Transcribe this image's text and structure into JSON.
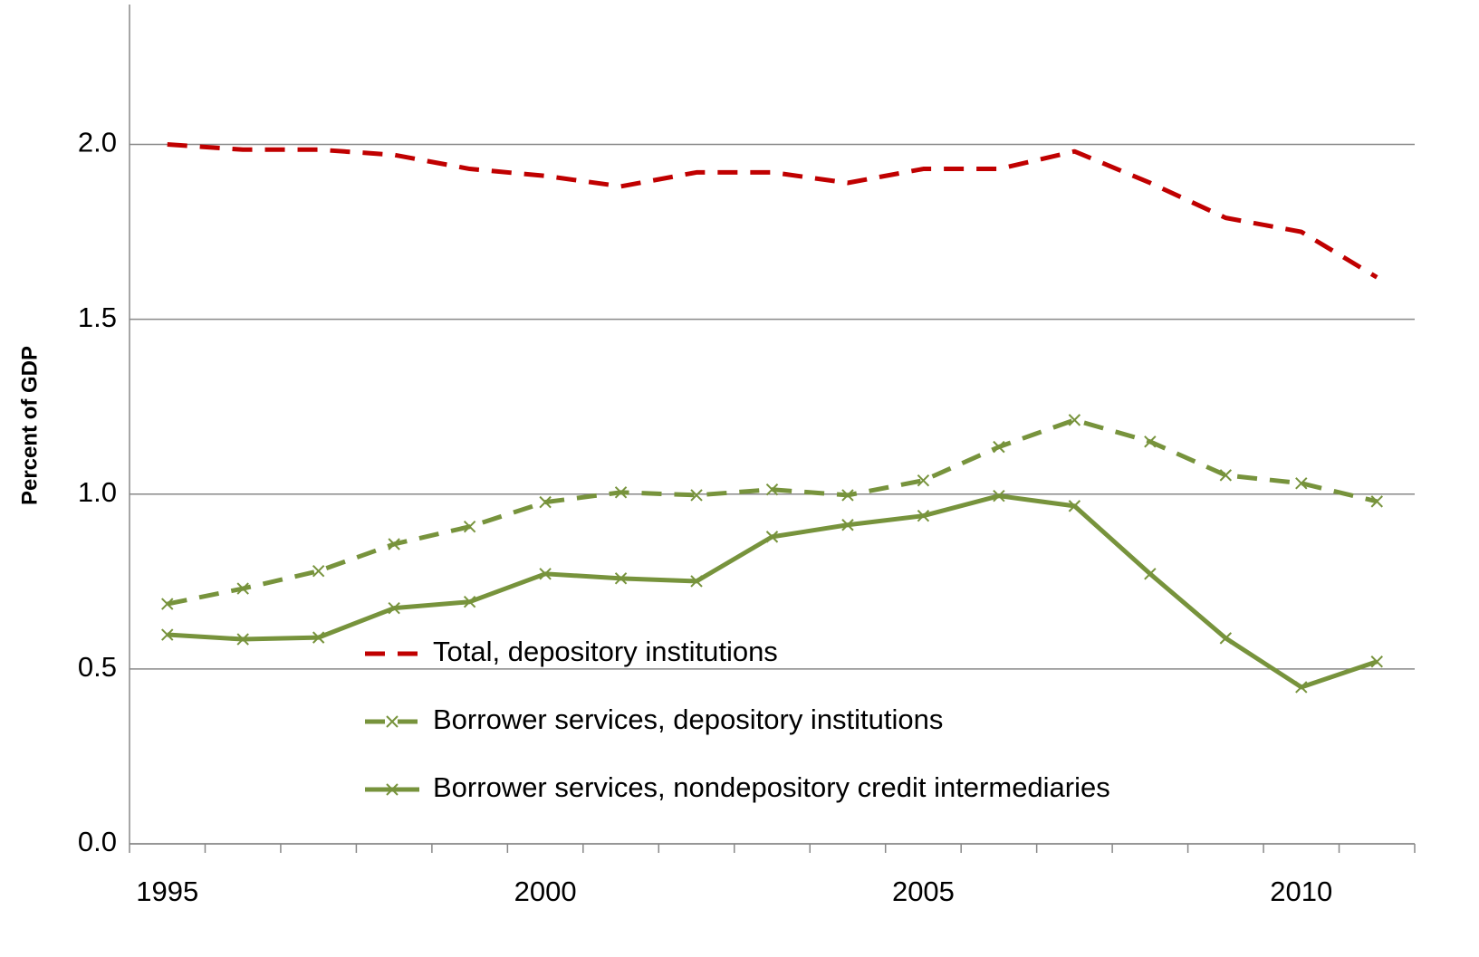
{
  "chart_data": {
    "type": "line",
    "y_label": "Percent of GDP",
    "categories": [
      "1995",
      null,
      null,
      null,
      null,
      "2000",
      null,
      null,
      null,
      null,
      "2005",
      null,
      null,
      null,
      null,
      "2010",
      null
    ],
    "series": [
      {
        "name": "Total, depository institutions",
        "color": "#c00000",
        "dash": true,
        "marker": false,
        "values": [
          2.0,
          1.985,
          1.985,
          1.97,
          1.93,
          1.91,
          1.88,
          1.92,
          1.92,
          1.89,
          1.93,
          1.93,
          1.98,
          1.89,
          1.79,
          1.75,
          1.62
        ]
      },
      {
        "name": "Borrower services, depository institutions",
        "color": "#77933c",
        "dash": true,
        "marker": true,
        "values": [
          0.686,
          0.73,
          0.78,
          0.857,
          0.907,
          0.977,
          1.005,
          0.997,
          1.013,
          0.997,
          1.039,
          1.135,
          1.212,
          1.15,
          1.054,
          1.031,
          0.979
        ]
      },
      {
        "name": "Borrower services, nondepository credit intermediaries",
        "color": "#77933c",
        "dash": false,
        "marker": true,
        "values": [
          0.598,
          0.585,
          0.59,
          0.674,
          0.692,
          0.772,
          0.759,
          0.751,
          0.878,
          0.912,
          0.938,
          0.995,
          0.966,
          0.772,
          0.588,
          0.448,
          0.521
        ]
      }
    ],
    "ylim": [
      0,
      2.4
    ],
    "yticks": [
      {
        "value": 0,
        "label": "0.0"
      },
      0.5,
      {
        "value": 1,
        "label": "1.0"
      },
      1.5,
      {
        "value": 2,
        "label": "2.0"
      }
    ],
    "grid": true
  }
}
